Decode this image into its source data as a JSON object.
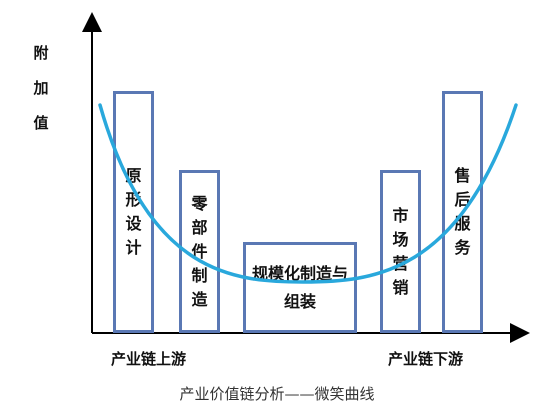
{
  "axis": {
    "y_label": "附加值"
  },
  "stages": [
    {
      "label": "原形设计"
    },
    {
      "label": "零部件制造"
    },
    {
      "label": "规模化制造与组装"
    },
    {
      "label": "市场营销"
    },
    {
      "label": "售后服务"
    }
  ],
  "x_labels": {
    "upstream": "产业链上游",
    "downstream": "产业链下游"
  },
  "caption": "产业价值链分析——微笑曲线",
  "colors": {
    "box_border": "#5a78b4",
    "curve": "#29a8dc",
    "axis": "#000000"
  }
}
